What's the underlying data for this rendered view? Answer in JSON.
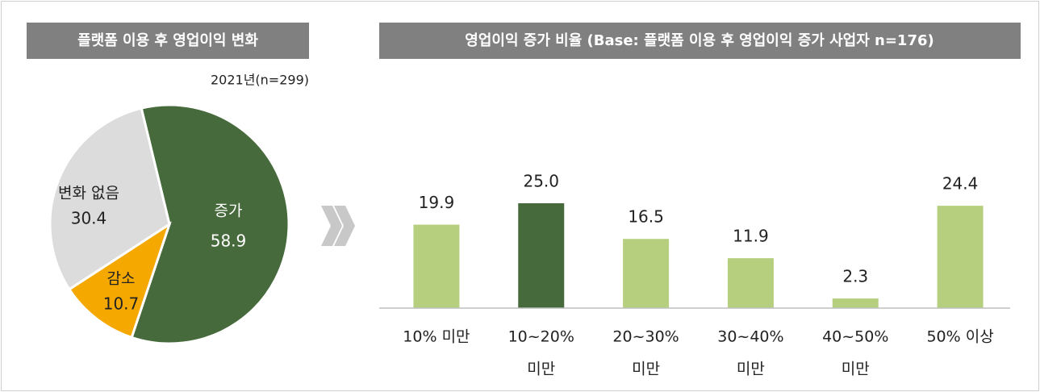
{
  "chart_data": [
    {
      "type": "pie",
      "title": "플랫폼 이용 후 영업이익 변화",
      "subtitle": "2021년(n=299)",
      "categories": [
        "증가",
        "감소",
        "변화 없음"
      ],
      "values": [
        58.9,
        10.7,
        30.4
      ],
      "colors": [
        "#476a3c",
        "#f5a800",
        "#dcdcdc"
      ],
      "label_colors": [
        "#ffffff",
        "#222222",
        "#222222"
      ]
    },
    {
      "type": "bar",
      "title": "영업이익 증가 비율 (Base: 플랫폼 이용 후 영업이익 증가 사업자 n=176)",
      "categories": [
        [
          "10% 미만"
        ],
        [
          "10~20%",
          "미만"
        ],
        [
          "20~30%",
          "미만"
        ],
        [
          "30~40%",
          "미만"
        ],
        [
          "40~50%",
          "미만"
        ],
        [
          "50% 이상"
        ]
      ],
      "values": [
        19.9,
        25,
        16.5,
        11.9,
        2.3,
        24.4
      ],
      "value_labels": [
        "19.9",
        "25.0",
        "16.5",
        "11.9",
        "2.3",
        "24.4"
      ],
      "colors": [
        "#b5cf7e",
        "#476a3c",
        "#b5cf7e",
        "#b5cf7e",
        "#b5cf7e",
        "#b5cf7e"
      ],
      "ylim": [
        0,
        30
      ]
    }
  ]
}
